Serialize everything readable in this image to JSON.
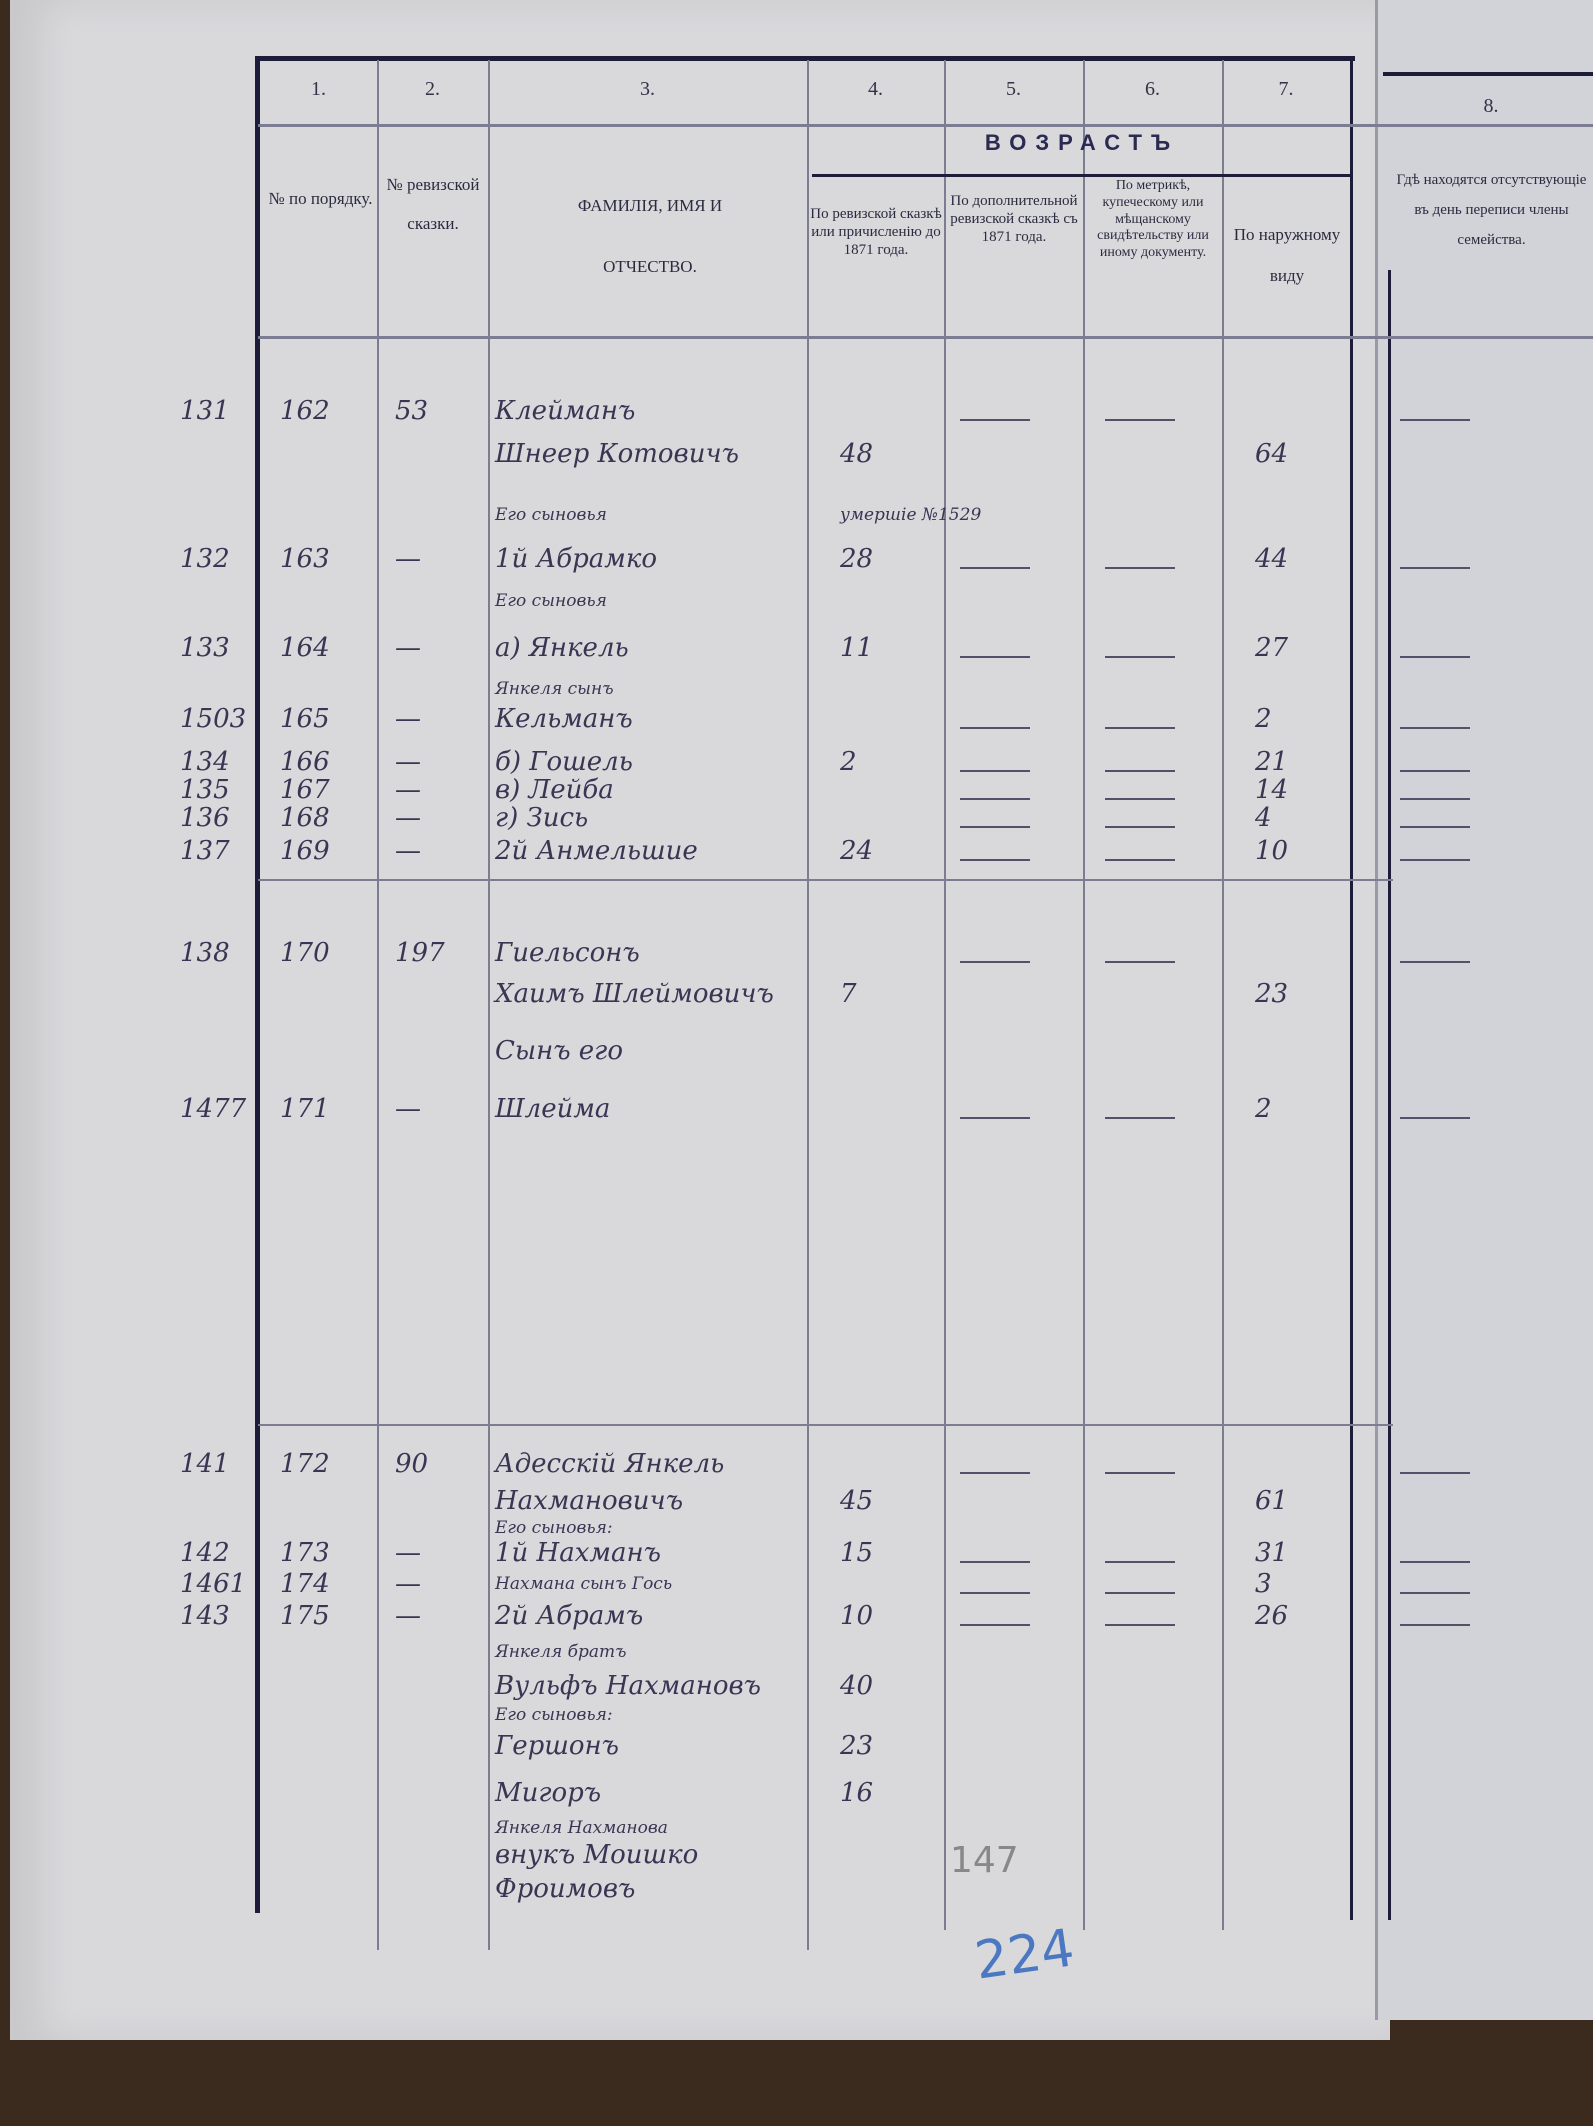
{
  "header": {
    "column_numbers": [
      "1.",
      "2.",
      "3.",
      "4.",
      "5.",
      "6.",
      "7.",
      "8."
    ],
    "col1": "№ по порядку.",
    "col2": "№ ревизской сказки.",
    "col3": "ФАМИЛІЯ, ИМЯ И ОТЧЕСТВО.",
    "age_group": "ВОЗРАСТЪ",
    "col4": "По ревизской сказкѣ или причисленію до 1871 года.",
    "col5": "По дополнительной ревизской сказкѣ съ 1871 года.",
    "col6": "По метрикѣ, купеческому или мѣщанскому свидѣтельству или иному документу.",
    "col7": "По наружному виду",
    "col8": "Гдѣ находятся отсутствующіе въ день переписи члены семейства."
  },
  "rows": [
    {
      "margin": "131",
      "no": "162",
      "rev": "53",
      "name": "Клейманъ",
      "age4": "",
      "age7": ""
    },
    {
      "margin": "",
      "no": "",
      "rev": "",
      "name": "Шнеер Котовичъ",
      "age4": "48",
      "age7": "64"
    },
    {
      "margin": "",
      "no": "",
      "rev": "",
      "name": "Его сыновья",
      "age4": "умершіе №1529",
      "age7": "",
      "note": true
    },
    {
      "margin": "132",
      "no": "163",
      "rev": "—",
      "name": "1й Абрамко",
      "age4": "28",
      "age7": "44"
    },
    {
      "margin": "",
      "no": "",
      "rev": "",
      "name": "Его сыновья",
      "age4": "",
      "age7": "",
      "note": true
    },
    {
      "margin": "133",
      "no": "164",
      "rev": "—",
      "name": "а) Янкель",
      "age4": "11",
      "age7": "27"
    },
    {
      "margin": "",
      "no": "",
      "rev": "",
      "name": "Янкеля сынъ",
      "age4": "",
      "age7": "",
      "note": true
    },
    {
      "margin": "1503",
      "no": "165",
      "rev": "—",
      "name": "Кельманъ",
      "age4": "",
      "age7": "2"
    },
    {
      "margin": "134",
      "no": "166",
      "rev": "—",
      "name": "б) Гошель",
      "age4": "2",
      "age7": "21"
    },
    {
      "margin": "135",
      "no": "167",
      "rev": "—",
      "name": "в) Лейба",
      "age4": "",
      "age7": "14"
    },
    {
      "margin": "136",
      "no": "168",
      "rev": "—",
      "name": "г) Зись",
      "age4": "",
      "age7": "4"
    },
    {
      "margin": "137",
      "no": "169",
      "rev": "—",
      "name": "2й Анмельшие",
      "age4": "24",
      "age7": "10"
    },
    {
      "margin": "138",
      "no": "170",
      "rev": "197",
      "name": "Гиельсонъ",
      "age4": "",
      "age7": ""
    },
    {
      "margin": "",
      "no": "",
      "rev": "",
      "name": "Хаимъ Шлеймовичъ",
      "age4": "7",
      "age7": "23"
    },
    {
      "margin": "",
      "no": "",
      "rev": "",
      "name": "Сынъ его",
      "age4": "",
      "age7": ""
    },
    {
      "margin": "1477",
      "no": "171",
      "rev": "—",
      "name": "Шлейма",
      "age4": "",
      "age7": "2"
    },
    {
      "margin": "141",
      "no": "172",
      "rev": "90",
      "name": "Адесскій Янкель",
      "age4": "",
      "age7": ""
    },
    {
      "margin": "",
      "no": "",
      "rev": "",
      "name": "Нахмановичъ",
      "age4": "45",
      "age7": "61"
    },
    {
      "margin": "",
      "no": "",
      "rev": "",
      "name": "Его сыновья:",
      "age4": "",
      "age7": "",
      "note": true
    },
    {
      "margin": "142",
      "no": "173",
      "rev": "—",
      "name": "1й Нахманъ",
      "age4": "15",
      "age7": "31"
    },
    {
      "margin": "1461",
      "no": "174",
      "rev": "—",
      "name": "Нахмана сынъ Гось",
      "age4": "",
      "age7": "3",
      "note": true
    },
    {
      "margin": "143",
      "no": "175",
      "rev": "—",
      "name": "2й Абрамъ",
      "age4": "10",
      "age7": "26"
    },
    {
      "margin": "",
      "no": "",
      "rev": "",
      "name": "Янкеля братъ",
      "age4": "",
      "age7": "",
      "note": true
    },
    {
      "margin": "",
      "no": "",
      "rev": "",
      "name": "Вульфъ Нахмановъ",
      "age4": "40",
      "age7": ""
    },
    {
      "margin": "",
      "no": "",
      "rev": "",
      "name": "Его сыновья:",
      "age4": "",
      "age7": "",
      "note": true
    },
    {
      "margin": "",
      "no": "",
      "rev": "",
      "name": "Гершонъ",
      "age4": "23",
      "age7": ""
    },
    {
      "margin": "",
      "no": "",
      "rev": "",
      "name": "Мигоръ",
      "age4": "16",
      "age7": ""
    },
    {
      "margin": "",
      "no": "",
      "rev": "",
      "name": "Янкеля Нахмановa",
      "age4": "",
      "age7": "",
      "note": true
    },
    {
      "margin": "",
      "no": "",
      "rev": "",
      "name": "внукъ Моишко",
      "age4": "",
      "age7": ""
    },
    {
      "margin": "",
      "no": "",
      "rev": "",
      "name": "Фроимовъ",
      "age4": "",
      "age7": ""
    }
  ],
  "annotations": {
    "pencil_number": "147",
    "blue_page_number": "224"
  }
}
